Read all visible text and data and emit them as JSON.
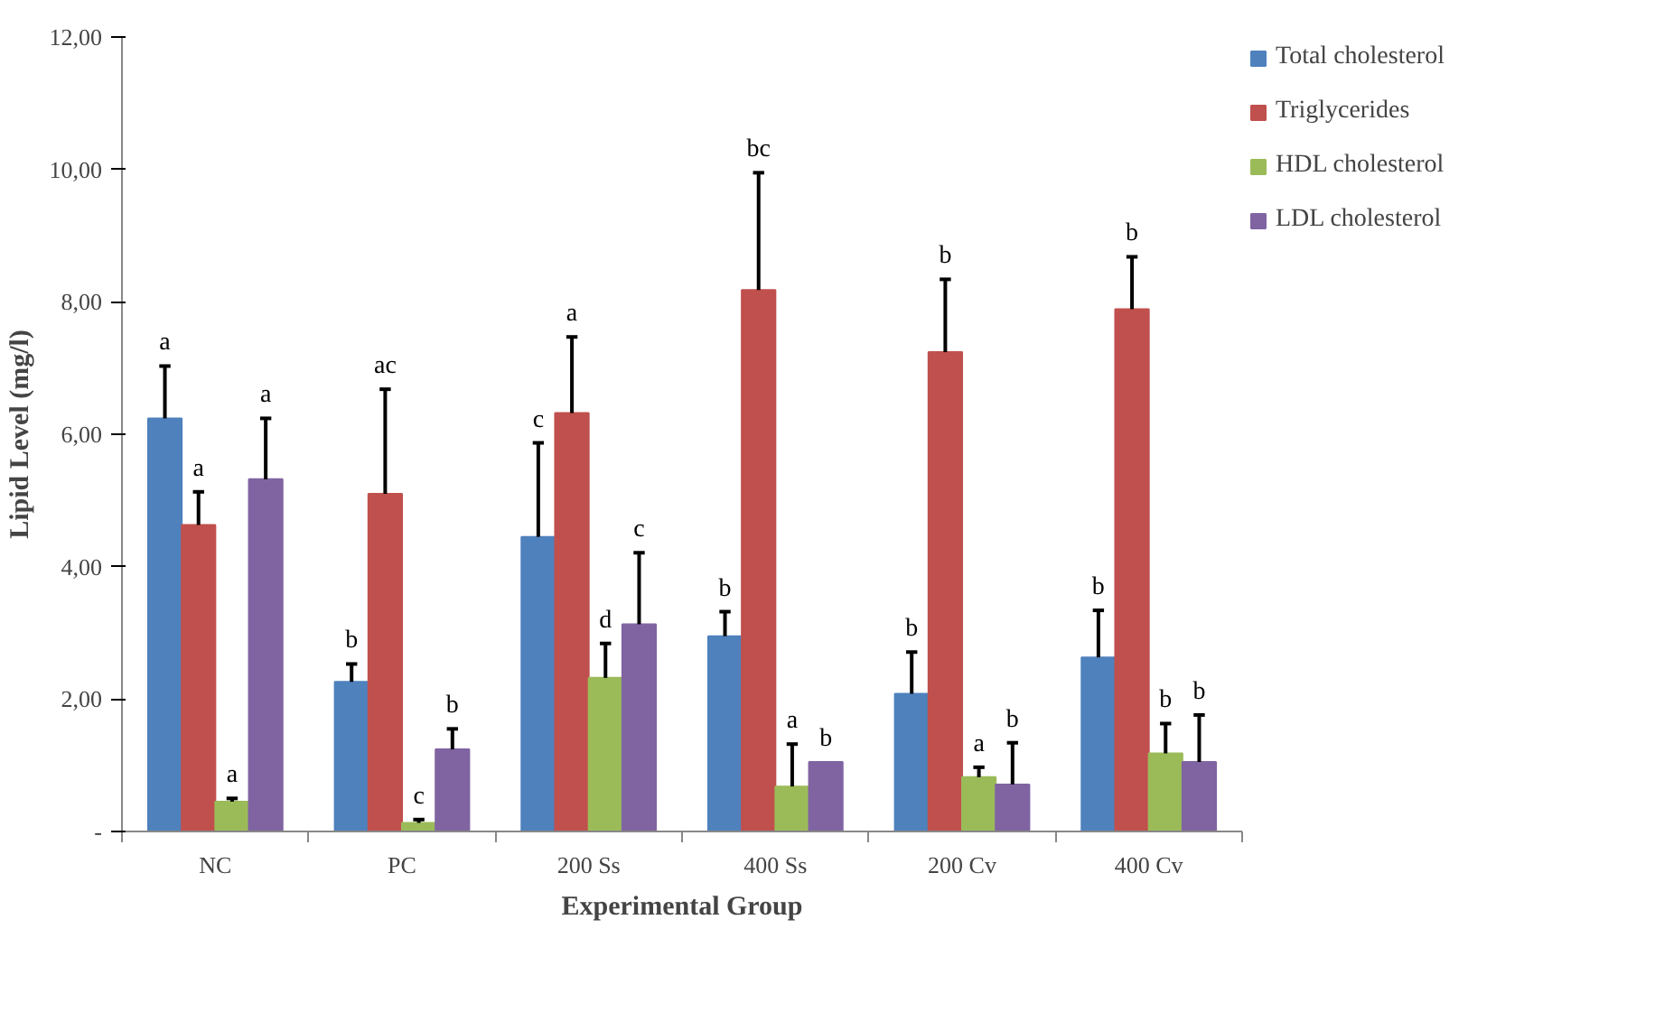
{
  "chart_data": {
    "type": "bar",
    "xlabel": "Experimental Group",
    "ylabel": "Lipid Level (mg/l)",
    "categories": [
      "NC",
      "PC",
      "200 Ss",
      "400 Ss",
      "200 Cv",
      "400 Cv"
    ],
    "ylim": [
      0,
      12
    ],
    "yticks": [
      {
        "value": 0,
        "label": "-"
      },
      {
        "value": 2,
        "label": "2,00"
      },
      {
        "value": 4,
        "label": "4,00"
      },
      {
        "value": 6,
        "label": "6,00"
      },
      {
        "value": 8,
        "label": "8,00"
      },
      {
        "value": 10,
        "label": "10,00"
      },
      {
        "value": 12,
        "label": "12,00"
      }
    ],
    "grid": false,
    "legend": "right",
    "series": [
      {
        "name": "Total cholesterol",
        "color": "#4f81bd",
        "values": [
          6.24,
          2.26,
          4.45,
          2.95,
          2.08,
          2.63
        ],
        "errors": [
          [
            6.24,
            7.03
          ],
          [
            2.26,
            2.53
          ],
          [
            4.45,
            5.87
          ],
          [
            2.95,
            3.32
          ],
          [
            2.08,
            2.71
          ],
          [
            2.63,
            3.34
          ]
        ]
      },
      {
        "name": "Triglycerides",
        "color": "#c0504d",
        "values": [
          4.63,
          5.1,
          6.32,
          8.18,
          7.24,
          7.89
        ],
        "errors": [
          [
            4.63,
            5.13
          ],
          [
            5.1,
            6.68
          ],
          [
            6.32,
            7.47
          ],
          [
            8.18,
            9.95
          ],
          [
            7.24,
            8.34
          ],
          [
            7.89,
            8.68
          ]
        ]
      },
      {
        "name": "HDL cholesterol",
        "color": "#9bbb59",
        "values": [
          0.45,
          0.13,
          2.32,
          0.68,
          0.82,
          1.18
        ],
        "errors": [
          [
            0.45,
            0.5
          ],
          [
            0.13,
            0.18
          ],
          [
            2.32,
            2.84
          ],
          [
            0.68,
            1.32
          ],
          [
            0.82,
            0.97
          ],
          [
            1.18,
            1.63
          ]
        ]
      },
      {
        "name": "LDL cholesterol",
        "color": "#8064a2",
        "values": [
          5.32,
          1.24,
          3.13,
          1.05,
          0.71,
          1.05
        ],
        "errors": [
          [
            5.32,
            6.24
          ],
          [
            1.24,
            1.55
          ],
          [
            3.13,
            4.21
          ],
          null,
          [
            0.71,
            1.34
          ],
          [
            1.05,
            1.76
          ]
        ]
      }
    ],
    "annotations": [
      "a",
      "a",
      "a",
      "a",
      "b",
      "ac",
      "c",
      "b",
      "c",
      "a",
      "d",
      "c",
      "b",
      "bc",
      "a",
      "b",
      "b",
      "b",
      "a",
      "b",
      "b",
      "b",
      "b",
      "b"
    ]
  }
}
